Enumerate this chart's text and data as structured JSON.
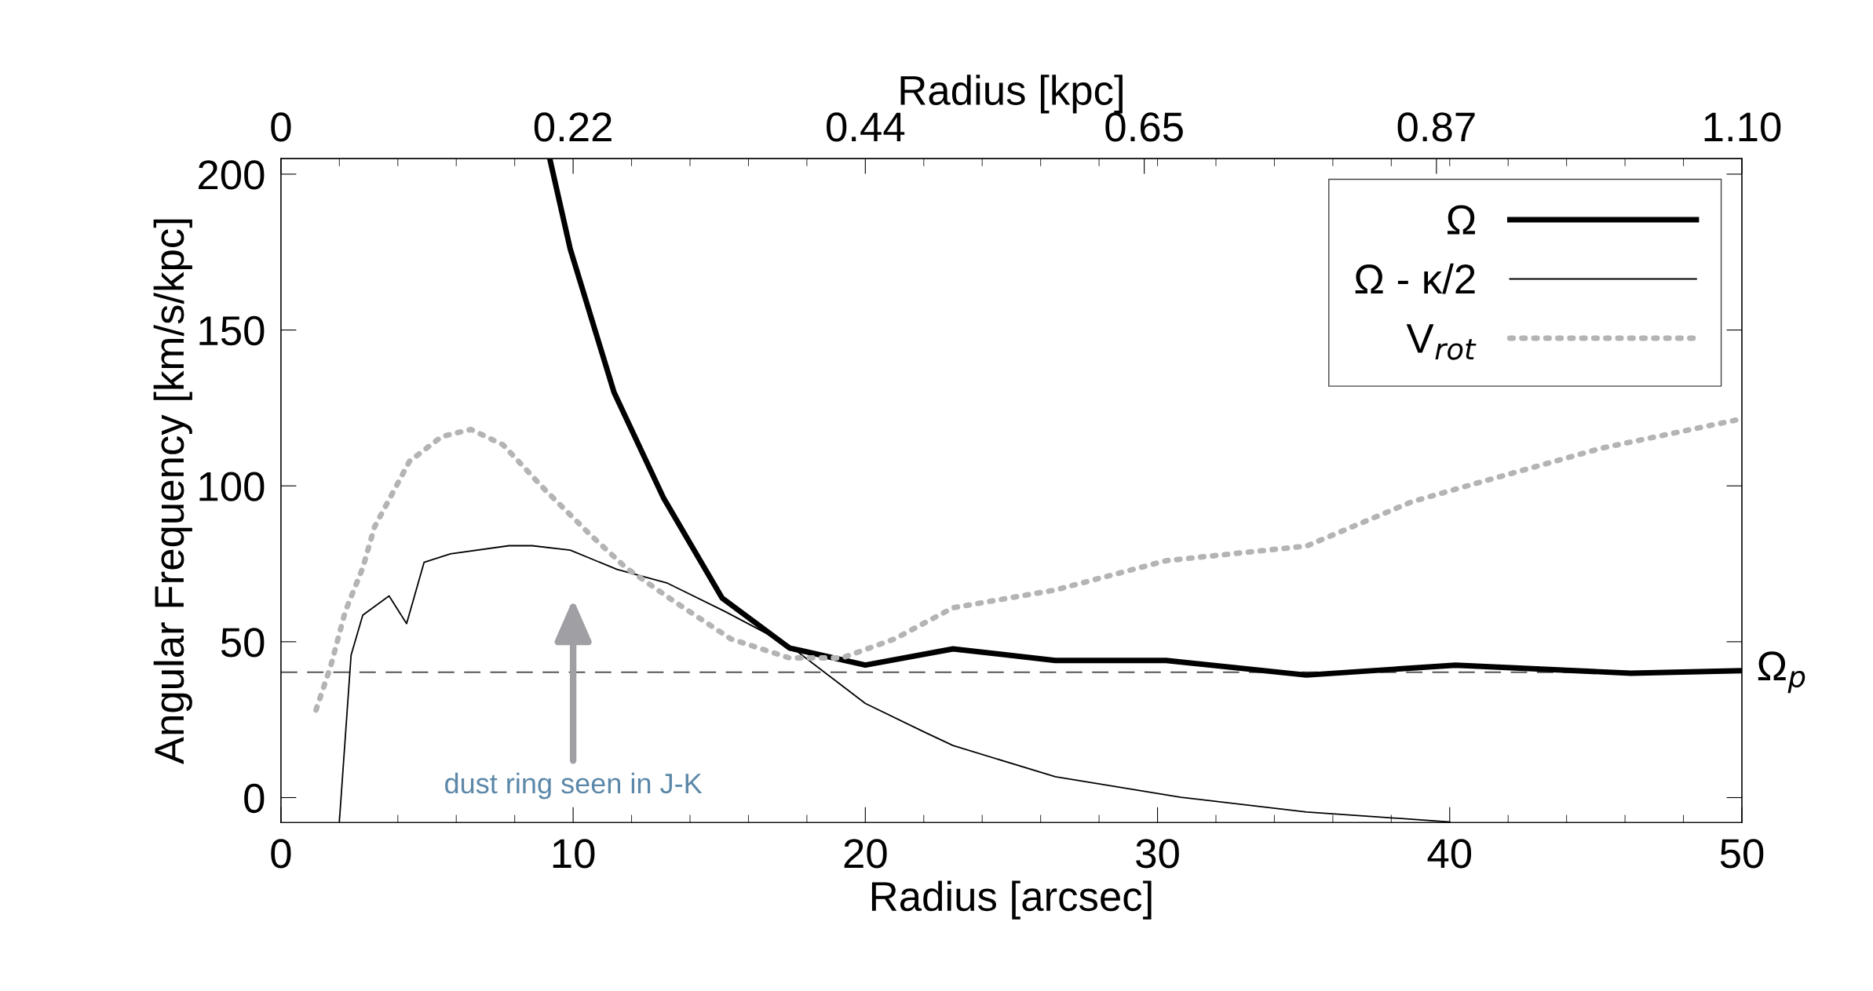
{
  "chart_data": {
    "type": "line",
    "xlabel": "Radius [arcsec]",
    "ylabel": "Angular Frequency [km/s/kpc]",
    "x2label": "Radius [kpc]",
    "xlim": [
      0,
      50
    ],
    "xticks": [
      0,
      10,
      20,
      30,
      40,
      50
    ],
    "x2lim": [
      0,
      1.1
    ],
    "x2ticks": [
      0,
      0.22,
      0.44,
      0.65,
      0.87,
      {
        "value": 1.1,
        "label": "1.10"
      }
    ],
    "ylim": [
      -8,
      205
    ],
    "yticks": [
      0,
      50,
      100,
      150,
      200
    ],
    "grid": false,
    "legend": "top right",
    "marker": "none",
    "series": [
      {
        "name": "Ω",
        "color": "#000000",
        "line_style": "solid",
        "x": [
          9.2,
          9.9,
          11.4,
          13.1,
          15.1,
          17.4,
          20.0,
          23.0,
          26.5,
          30.3,
          35.1,
          40.2,
          46.2,
          50
        ],
        "values": [
          205,
          176,
          130,
          96,
          64,
          48,
          42.5,
          47.7,
          44,
          44,
          39.3,
          42.5,
          39.9,
          40.7
        ]
      },
      {
        "name": "Ω - κ/2",
        "color": "#000000",
        "line_style": "solid",
        "x": [
          2.0,
          2.4,
          2.8,
          3.7,
          4.3,
          4.9,
          5.8,
          7.8,
          8.6,
          9.9,
          11.5,
          13.2,
          15.2,
          17.4,
          20.0,
          22.0,
          23.0,
          26.5,
          30.8,
          35.1,
          40.0
        ],
        "values": [
          -7.6,
          45.7,
          58.5,
          64.7,
          55.8,
          75.5,
          78.2,
          80.8,
          80.8,
          79.4,
          73.2,
          68.9,
          59.7,
          48.8,
          30.2,
          21.1,
          16.7,
          6.7,
          0.1,
          -4.6,
          -7.8
        ]
      },
      {
        "name": "V$_{rot}$",
        "color": "#b4b4b4",
        "line_style": "dotted",
        "x": [
          1.2,
          1.7,
          2.2,
          2.8,
          3.2,
          4.4,
          5.5,
          6.5,
          7.6,
          9.0,
          10.6,
          11.8,
          13.4,
          15.4,
          17.4,
          19.2,
          21.0,
          23.0,
          26.5,
          30.3,
          35.1,
          38.7,
          40.9,
          45.2,
          50
        ],
        "values": [
          28.1,
          42.1,
          59.7,
          73.7,
          86.8,
          107.9,
          115.8,
          118.1,
          113.2,
          99.1,
          84.2,
          73.8,
          63.3,
          50.9,
          44.8,
          44.8,
          50.9,
          60.9,
          66.6,
          76.0,
          80.7,
          94.9,
          100.8,
          112.1,
          121.5
        ]
      }
    ],
    "ref_lines": [
      {
        "axis": "y",
        "value": 40.2,
        "label": "Ω$_{p}$",
        "color": "#555555",
        "line_style": "dashed"
      }
    ],
    "annotations": [
      "dust ring seen in J-K"
    ]
  }
}
